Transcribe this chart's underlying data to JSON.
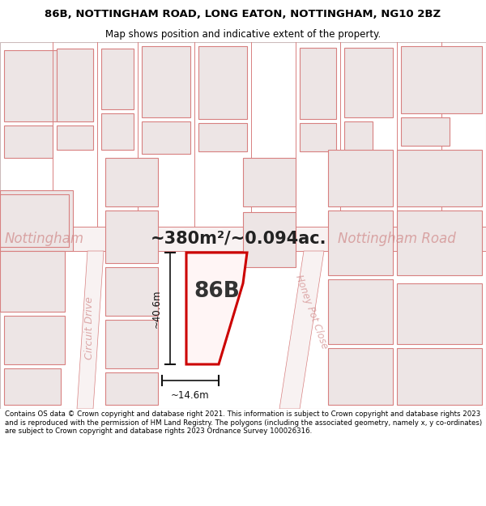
{
  "title_line1": "86B, NOTTINGHAM ROAD, LONG EATON, NOTTINGHAM, NG10 2BZ",
  "title_line2": "Map shows position and indicative extent of the property.",
  "area_text": "~380m²/~0.094ac.",
  "label_86B": "86B",
  "label_road": "Nottingham Road",
  "label_nottingham": "Nottingham",
  "label_circuit": "Circuit Drive",
  "label_honeypot": "Honey Pot Close",
  "dim_height": "~40.6m",
  "dim_width": "~14.6m",
  "footer_text": "Contains OS data © Crown copyright and database right 2021. This information is subject to Crown copyright and database rights 2023 and is reproduced with the permission of HM Land Registry. The polygons (including the associated geometry, namely x, y co-ordinates) are subject to Crown copyright and database rights 2023 Ordnance Survey 100026316.",
  "bg_color": "#ffffff",
  "map_bg": "#fdf8f8",
  "building_fill": "#ede5e5",
  "building_edge": "#d88080",
  "road_fill": "#faf5f5",
  "highlight_color": "#cc0000",
  "highlight_fill": "#fff5f5",
  "dim_color": "#111111",
  "text_road": "#d08888",
  "text_area": "#222222",
  "title_fontsize": 9.5,
  "subtitle_fontsize": 8.5,
  "footer_fontsize": 6.2
}
